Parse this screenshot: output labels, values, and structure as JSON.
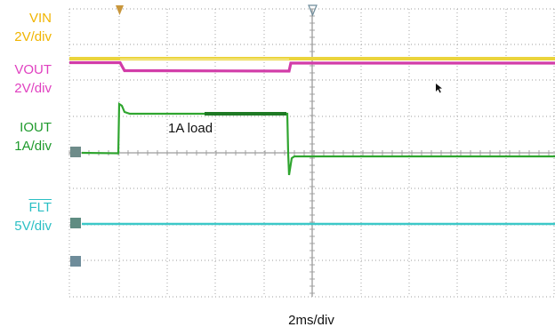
{
  "channels": [
    {
      "name": "VIN",
      "scale": "2V/div",
      "color": "#F0B400",
      "trace_color": "#EBD43C"
    },
    {
      "name": "VOUT",
      "scale": "2V/div",
      "color": "#E040C0",
      "trace_color": "#D23CA8"
    },
    {
      "name": "IOUT",
      "scale": "1A/div",
      "color": "#1E9A2C",
      "trace_color": "#2FA52F"
    },
    {
      "name": "FLT",
      "scale": "5V/div",
      "color": "#2ABFC4",
      "trace_color": "#3CC8C8"
    }
  ],
  "annotation": "1A load",
  "timebase": "2ms/div",
  "colors": {
    "grid": "#9C9C9C",
    "trigger_marker": "#C8963C",
    "ref_marker": "#6E8C9A"
  },
  "icons": [
    "trigger-marker-icon",
    "time-reference-marker-icon",
    "mouse-cursor-icon"
  ]
}
